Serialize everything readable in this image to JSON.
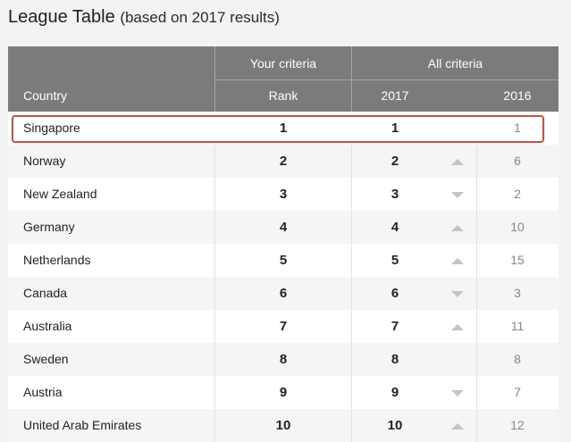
{
  "title": "League Table",
  "subtitle": "(based on 2017 results)",
  "header": {
    "group_your": "Your criteria",
    "group_all": "All criteria",
    "col_country": "Country",
    "col_rank": "Rank",
    "col_2017": "2017",
    "col_2016": "2016"
  },
  "colors": {
    "header_bg": "#7b7b7b",
    "highlight_border": "#b6574f",
    "arrow": "#c4c4c4"
  },
  "rows": [
    {
      "country": "Singapore",
      "rank": "1",
      "y2017": "1",
      "trend": "none",
      "y2016": "1",
      "selected": true
    },
    {
      "country": "Norway",
      "rank": "2",
      "y2017": "2",
      "trend": "up",
      "y2016": "6"
    },
    {
      "country": "New Zealand",
      "rank": "3",
      "y2017": "3",
      "trend": "down",
      "y2016": "2"
    },
    {
      "country": "Germany",
      "rank": "4",
      "y2017": "4",
      "trend": "up",
      "y2016": "10"
    },
    {
      "country": "Netherlands",
      "rank": "5",
      "y2017": "5",
      "trend": "up",
      "y2016": "15"
    },
    {
      "country": "Canada",
      "rank": "6",
      "y2017": "6",
      "trend": "down",
      "y2016": "3"
    },
    {
      "country": "Australia",
      "rank": "7",
      "y2017": "7",
      "trend": "up",
      "y2016": "11"
    },
    {
      "country": "Sweden",
      "rank": "8",
      "y2017": "8",
      "trend": "none",
      "y2016": "8"
    },
    {
      "country": "Austria",
      "rank": "9",
      "y2017": "9",
      "trend": "down",
      "y2016": "7"
    },
    {
      "country": "United Arab Emirates",
      "rank": "10",
      "y2017": "10",
      "trend": "up",
      "y2016": "12"
    }
  ]
}
